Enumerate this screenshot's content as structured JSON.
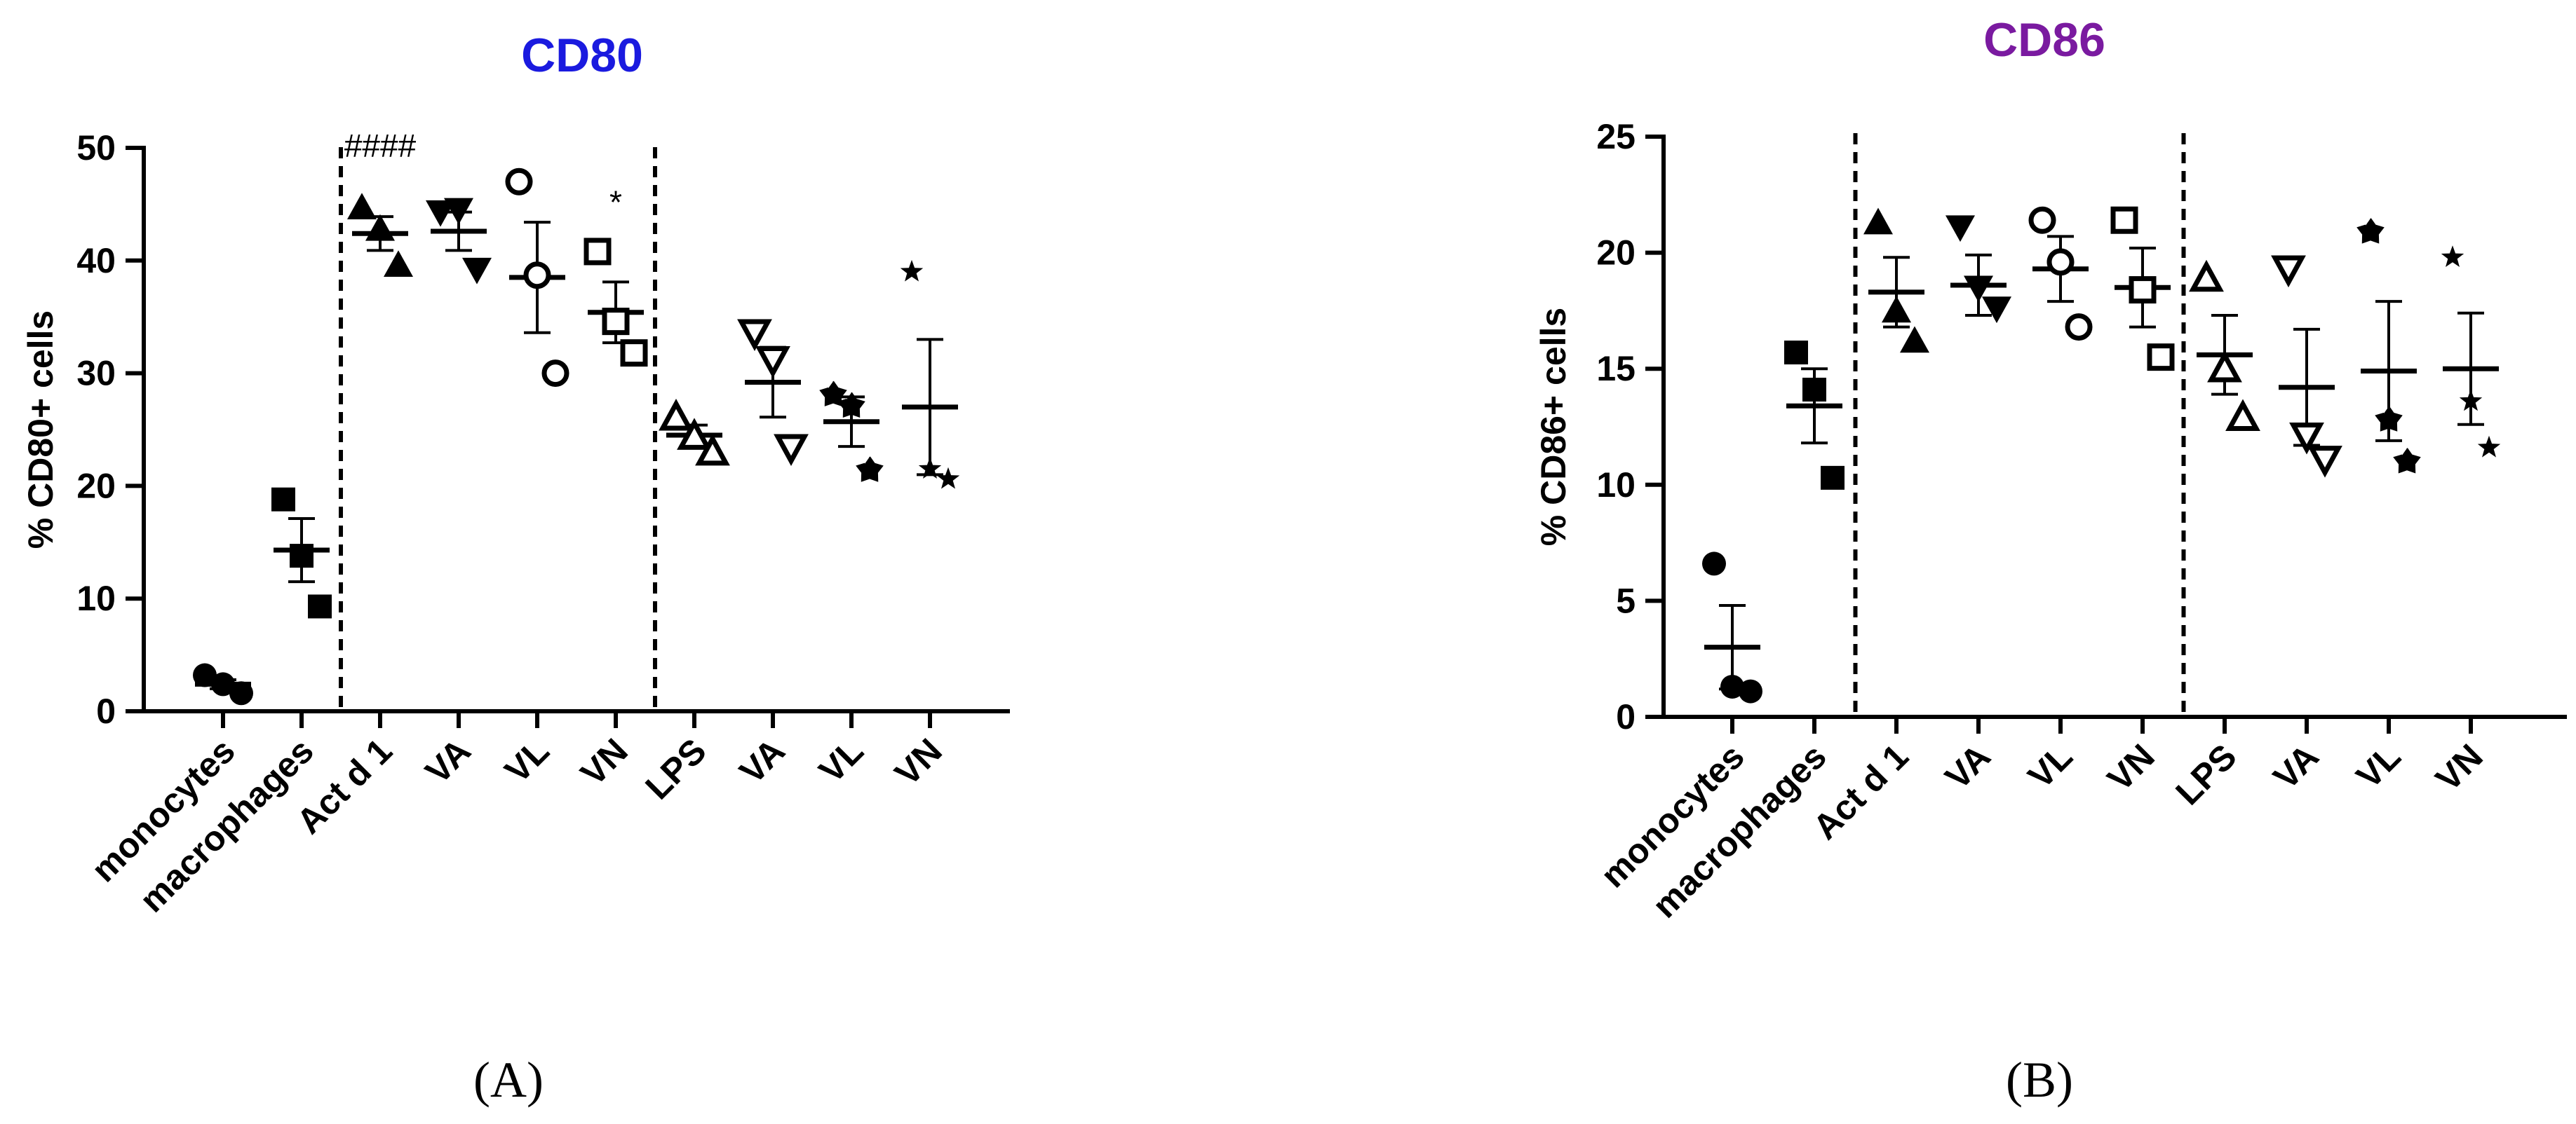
{
  "chart_data": [
    {
      "panel": "A",
      "panel_label": "(A)",
      "type": "scatter",
      "title": "CD80",
      "title_color": "#1a1adf",
      "ylabel": "% CD80+ cells",
      "xlabel": "",
      "ylim": [
        0,
        50
      ],
      "yticks": [
        0,
        10,
        20,
        30,
        40,
        50
      ],
      "grid": false,
      "separators_after": [
        2,
        6
      ],
      "categories": [
        "monocytes",
        "macrophages",
        "Act d 1",
        "VA",
        "VL",
        "VN",
        "LPS",
        "VA",
        "VL",
        "VN"
      ],
      "markers": [
        "circle-filled",
        "square-filled",
        "triangle-up-filled",
        "triangle-down-filled",
        "circle-open",
        "square-open",
        "triangle-up-open",
        "triangle-down-open",
        "asterisk-filled",
        "star-filled"
      ],
      "points": [
        [
          3.2,
          2.4,
          1.6
        ],
        [
          18.8,
          13.8,
          9.3
        ],
        [
          44.7,
          42.8,
          39.6
        ],
        [
          44.3,
          44.5,
          39.2
        ],
        [
          47.0,
          38.7,
          30.0
        ],
        [
          40.8,
          34.6,
          31.8
        ],
        [
          26.1,
          24.4,
          23.0
        ],
        [
          33.6,
          31.2,
          23.4
        ],
        [
          28.1,
          27.1,
          21.4
        ],
        [
          39.0,
          21.5,
          20.6
        ]
      ],
      "mean": [
        2.4,
        14.3,
        42.4,
        42.6,
        38.5,
        35.4,
        24.5,
        29.2,
        25.7,
        27.0
      ],
      "sem": [
        0.4,
        2.8,
        1.5,
        1.7,
        4.9,
        2.7,
        0.9,
        3.1,
        2.2,
        6.0
      ],
      "annotations": [
        {
          "category_index": 2,
          "text": "####",
          "y": 49.2
        },
        {
          "category_index": 5,
          "text": "*",
          "y": 44.2
        }
      ]
    },
    {
      "panel": "B",
      "panel_label": "(B)",
      "type": "scatter",
      "title": "CD86",
      "title_color": "#7a1aa0",
      "ylabel": "% CD86+ cells",
      "xlabel": "",
      "ylim": [
        0,
        25
      ],
      "yticks": [
        0,
        5,
        10,
        15,
        20,
        25
      ],
      "grid": false,
      "separators_after": [
        2,
        6
      ],
      "categories": [
        "monocytes",
        "macrophages",
        "Act d 1",
        "VA",
        "VL",
        "VN",
        "LPS",
        "VA",
        "VL",
        "VN"
      ],
      "markers": [
        "circle-filled",
        "square-filled",
        "triangle-up-filled",
        "triangle-down-filled",
        "circle-open",
        "square-open",
        "triangle-up-open",
        "triangle-down-open",
        "asterisk-filled",
        "star-filled"
      ],
      "points": [
        [
          6.6,
          1.3,
          1.1
        ],
        [
          15.7,
          14.1,
          10.3
        ],
        [
          21.3,
          17.5,
          16.2
        ],
        [
          21.1,
          18.5,
          17.6
        ],
        [
          21.4,
          19.6,
          16.8
        ],
        [
          21.4,
          18.4,
          15.5
        ],
        [
          18.9,
          15.0,
          12.9
        ],
        [
          19.3,
          12.1,
          11.1
        ],
        [
          20.9,
          12.8,
          11.0
        ],
        [
          19.8,
          13.6,
          11.6
        ]
      ],
      "mean": [
        3.0,
        13.4,
        18.3,
        18.6,
        19.3,
        18.5,
        15.6,
        14.2,
        14.9,
        15.0
      ],
      "sem": [
        1.8,
        1.6,
        1.5,
        1.3,
        1.4,
        1.7,
        1.7,
        2.5,
        3.0,
        2.4
      ],
      "annotations": []
    }
  ]
}
